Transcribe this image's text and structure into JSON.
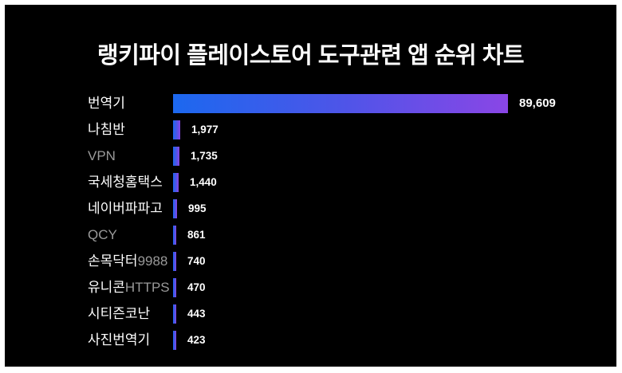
{
  "page": {
    "title": "랭키파이 플레이스토어 도구관련 앱 순위 차트"
  },
  "chart_data": {
    "type": "bar",
    "orientation": "horizontal",
    "title": "랭키파이 플레이스토어 도구관련 앱 순위 차트",
    "categories": [
      "번역기",
      "나침반",
      "VPN",
      "국세청홈택스",
      "네이버파파고",
      "QCY",
      "손목닥터9988",
      "유니콘HTTPS",
      "시티즌코난",
      "사진번역기"
    ],
    "values": [
      89609,
      1977,
      1735,
      1440,
      995,
      861,
      740,
      470,
      443,
      423
    ],
    "value_labels": [
      "89,609",
      "1,977",
      "1,735",
      "1,440",
      "995",
      "861",
      "740",
      "470",
      "443",
      "423"
    ],
    "xlim": [
      0,
      89609
    ],
    "grid": false,
    "axes_visible": false,
    "legend": "none",
    "colors": {
      "background": "#000000",
      "frame_border": "#ffffff",
      "bar_gradient_start": "#1c68ef",
      "bar_gradient_mid": "#4d55e8",
      "bar_gradient_end": "#8a46e6",
      "label_korean": "#ffffff",
      "label_latin": "#9a9a9a",
      "value_text": "#ffffff",
      "title_text": "#ffffff"
    }
  }
}
